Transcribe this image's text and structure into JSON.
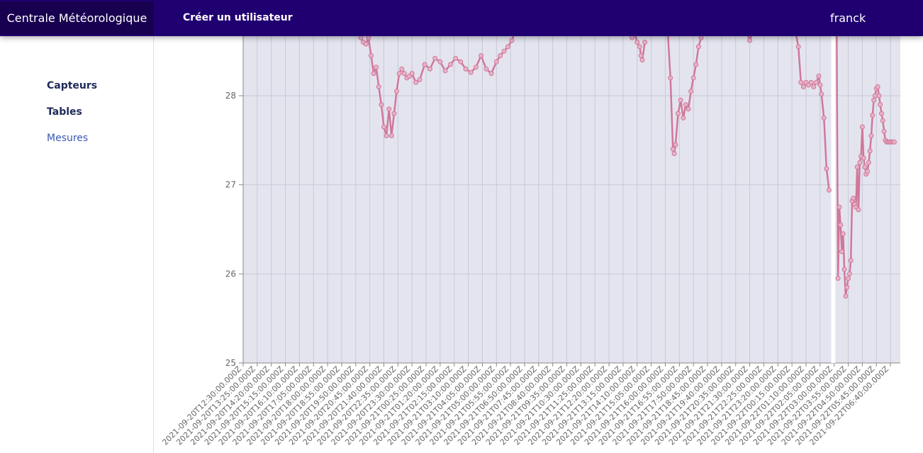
{
  "navbar": {
    "brand": "Centrale Météorologique",
    "create_user": "Créer un utilisateur",
    "username": "franck"
  },
  "sidebar": {
    "items": [
      {
        "label": "Capteurs",
        "active": false
      },
      {
        "label": "Tables",
        "active": false
      },
      {
        "label": "Mesures",
        "active": true
      }
    ]
  },
  "colors": {
    "navbar": "#200071",
    "brand_bg": "#180050",
    "plot_bg": "#e4e4ef",
    "series_line": "#d0789a",
    "active_link": "#3a58b8"
  },
  "chart_data": {
    "type": "line",
    "title": "",
    "xlabel": "",
    "ylabel": "",
    "ylim": [
      25,
      28.6
    ],
    "yticks": [
      25,
      26,
      27,
      28
    ],
    "grid": true,
    "x_tick_labels": [
      "2021-09-20T12:30:00.000Z",
      "2021-09-20T13:25:00.000Z",
      "2021-09-20T14:20:00.000Z",
      "2021-09-20T15:15:00.000Z",
      "2021-09-20T16:10:00.000Z",
      "2021-09-20T17:05:00.000Z",
      "2021-09-20T18:00:00.000Z",
      "2021-09-20T18:55:00.000Z",
      "2021-09-20T19:50:00.000Z",
      "2021-09-20T20:45:00.000Z",
      "2021-09-20T21:40:00.000Z",
      "2021-09-20T22:35:00.000Z",
      "2021-09-20T23:30:00.000Z",
      "2021-09-21T00:25:00.000Z",
      "2021-09-21T01:20:00.000Z",
      "2021-09-21T02:15:00.000Z",
      "2021-09-21T03:10:00.000Z",
      "2021-09-21T04:05:00.000Z",
      "2021-09-21T05:00:00.000Z",
      "2021-09-21T05:55:00.000Z",
      "2021-09-21T06:50:00.000Z",
      "2021-09-21T07:45:00.000Z",
      "2021-09-21T08:40:00.000Z",
      "2021-09-21T09:35:00.000Z",
      "2021-09-21T10:30:00.000Z",
      "2021-09-21T11:25:00.000Z",
      "2021-09-21T12:20:00.000Z",
      "2021-09-21T13:15:00.000Z",
      "2021-09-21T14:10:00.000Z",
      "2021-09-21T15:05:00.000Z",
      "2021-09-21T16:00:00.000Z",
      "2021-09-21T16:55:00.000Z",
      "2021-09-21T17:50:00.000Z",
      "2021-09-21T18:45:00.000Z",
      "2021-09-21T19:40:00.000Z",
      "2021-09-21T20:35:00.000Z",
      "2021-09-21T21:30:00.000Z",
      "2021-09-21T22:25:00.000Z",
      "2021-09-21T23:20:00.000Z",
      "2021-09-22T00:15:00.000Z",
      "2021-09-22T01:10:00.000Z",
      "2021-09-22T02:05:00.000Z",
      "2021-09-22T03:00:00.000Z",
      "2021-09-22T03:55:00.000Z",
      "2021-09-22T04:50:00.000Z",
      "2021-09-22T05:45:00.000Z",
      "2021-09-22T06:40:00.000Z"
    ],
    "series": [
      {
        "x": [
          "2021-09-20T20:10:00.000Z",
          "2021-09-20T20:20:00.000Z",
          "2021-09-20T20:30:00.000Z",
          "2021-09-20T20:40:00.000Z",
          "2021-09-20T20:50:00.000Z",
          "2021-09-20T21:00:00.000Z",
          "2021-09-20T21:10:00.000Z",
          "2021-09-20T21:20:00.000Z",
          "2021-09-20T21:30:00.000Z",
          "2021-09-20T21:40:00.000Z",
          "2021-09-20T21:50:00.000Z",
          "2021-09-20T22:00:00.000Z",
          "2021-09-20T22:10:00.000Z",
          "2021-09-20T22:20:00.000Z",
          "2021-09-20T22:30:00.000Z",
          "2021-09-20T22:40:00.000Z",
          "2021-09-20T22:50:00.000Z",
          "2021-09-20T23:00:00.000Z",
          "2021-09-20T23:10:00.000Z",
          "2021-09-20T23:20:00.000Z",
          "2021-09-20T23:30:00.000Z",
          "2021-09-20T23:45:00.000Z",
          "2021-09-21T00:00:00.000Z",
          "2021-09-21T00:20:00.000Z",
          "2021-09-21T00:40:00.000Z",
          "2021-09-21T01:00:00.000Z",
          "2021-09-21T01:20:00.000Z",
          "2021-09-21T01:40:00.000Z",
          "2021-09-21T02:00:00.000Z",
          "2021-09-21T02:20:00.000Z",
          "2021-09-21T02:40:00.000Z",
          "2021-09-21T03:00:00.000Z",
          "2021-09-21T03:20:00.000Z",
          "2021-09-21T03:40:00.000Z",
          "2021-09-21T04:00:00.000Z",
          "2021-09-21T04:20:00.000Z",
          "2021-09-21T04:40:00.000Z",
          "2021-09-21T05:00:00.000Z",
          "2021-09-21T05:15:00.000Z",
          "2021-09-21T05:30:00.000Z",
          "2021-09-21T05:45:00.000Z",
          "2021-09-21T06:00:00.000Z",
          "2021-09-21T06:10:00.000Z"
        ],
        "y": [
          28.65,
          28.6,
          28.58,
          28.65,
          28.45,
          28.25,
          28.32,
          28.1,
          27.9,
          27.65,
          27.55,
          27.85,
          27.55,
          27.8,
          28.05,
          28.25,
          28.3,
          28.25,
          28.2,
          28.22,
          28.25,
          28.15,
          28.18,
          28.35,
          28.3,
          28.42,
          28.38,
          28.28,
          28.35,
          28.42,
          28.38,
          28.3,
          28.26,
          28.32,
          28.45,
          28.3,
          28.25,
          28.38,
          28.45,
          28.5,
          28.55,
          28.62,
          28.7
        ]
      },
      {
        "x": [
          "2021-09-21T13:50:00.000Z",
          "2021-09-21T14:00:00.000Z",
          "2021-09-21T14:10:00.000Z",
          "2021-09-21T14:20:00.000Z",
          "2021-09-21T14:25:00.000Z",
          "2021-09-21T14:30:00.000Z",
          "2021-09-21T14:40:00.000Z"
        ],
        "y": [
          28.65,
          28.7,
          28.6,
          28.55,
          28.45,
          28.4,
          28.6
        ]
      },
      {
        "x": [
          "2021-09-21T16:10:00.000Z",
          "2021-09-21T16:20:00.000Z",
          "2021-09-21T16:30:00.000Z",
          "2021-09-21T16:35:00.000Z",
          "2021-09-21T16:40:00.000Z",
          "2021-09-21T16:50:00.000Z",
          "2021-09-21T17:00:00.000Z",
          "2021-09-21T17:10:00.000Z",
          "2021-09-21T17:20:00.000Z",
          "2021-09-21T17:30:00.000Z",
          "2021-09-21T17:40:00.000Z",
          "2021-09-21T17:50:00.000Z",
          "2021-09-21T18:00:00.000Z",
          "2021-09-21T18:10:00.000Z",
          "2021-09-21T18:20:00.000Z"
        ],
        "y": [
          28.7,
          28.2,
          27.4,
          27.35,
          27.45,
          27.8,
          27.95,
          27.75,
          27.9,
          27.85,
          28.05,
          28.2,
          28.35,
          28.55,
          28.65
        ]
      },
      {
        "x": [
          "2021-09-21T21:20:00.000Z",
          "2021-09-21T21:30:00.000Z",
          "2021-09-21T21:40:00.000Z"
        ],
        "y": [
          28.7,
          28.62,
          28.7
        ]
      },
      {
        "x": [
          "2021-09-22T00:30:00.000Z",
          "2021-09-22T00:40:00.000Z",
          "2021-09-22T00:50:00.000Z",
          "2021-09-22T01:00:00.000Z",
          "2021-09-22T01:10:00.000Z",
          "2021-09-22T01:20:00.000Z",
          "2021-09-22T01:30:00.000Z",
          "2021-09-22T01:40:00.000Z",
          "2021-09-22T01:50:00.000Z",
          "2021-09-22T02:00:00.000Z",
          "2021-09-22T02:05:00.000Z",
          "2021-09-22T02:10:00.000Z",
          "2021-09-22T02:20:00.000Z",
          "2021-09-22T02:30:00.000Z",
          "2021-09-22T02:40:00.000Z"
        ],
        "y": [
          28.7,
          28.55,
          28.15,
          28.1,
          28.15,
          28.12,
          28.15,
          28.1,
          28.15,
          28.22,
          28.12,
          28.02,
          27.75,
          27.18,
          26.94
        ]
      },
      {
        "x": [
          "2021-09-22T03:10:00.000Z",
          "2021-09-22T03:15:00.000Z",
          "2021-09-22T03:20:00.000Z",
          "2021-09-22T03:25:00.000Z",
          "2021-09-22T03:30:00.000Z",
          "2021-09-22T03:35:00.000Z",
          "2021-09-22T03:40:00.000Z",
          "2021-09-22T03:45:00.000Z",
          "2021-09-22T03:50:00.000Z",
          "2021-09-22T03:55:00.000Z",
          "2021-09-22T04:00:00.000Z",
          "2021-09-22T04:05:00.000Z",
          "2021-09-22T04:10:00.000Z",
          "2021-09-22T04:15:00.000Z",
          "2021-09-22T04:20:00.000Z",
          "2021-09-22T04:25:00.000Z",
          "2021-09-22T04:30:00.000Z",
          "2021-09-22T04:35:00.000Z",
          "2021-09-22T04:40:00.000Z",
          "2021-09-22T04:45:00.000Z",
          "2021-09-22T04:50:00.000Z",
          "2021-09-22T04:55:00.000Z",
          "2021-09-22T05:00:00.000Z",
          "2021-09-22T05:05:00.000Z",
          "2021-09-22T05:10:00.000Z",
          "2021-09-22T05:15:00.000Z",
          "2021-09-22T05:20:00.000Z",
          "2021-09-22T05:25:00.000Z",
          "2021-09-22T05:30:00.000Z",
          "2021-09-22T05:35:00.000Z",
          "2021-09-22T05:40:00.000Z",
          "2021-09-22T05:45:00.000Z",
          "2021-09-22T05:50:00.000Z",
          "2021-09-22T05:55:00.000Z",
          "2021-09-22T06:00:00.000Z",
          "2021-09-22T06:05:00.000Z",
          "2021-09-22T06:10:00.000Z",
          "2021-09-22T06:15:00.000Z",
          "2021-09-22T06:20:00.000Z",
          "2021-09-22T06:25:00.000Z",
          "2021-09-22T06:30:00.000Z",
          "2021-09-22T06:35:00.000Z",
          "2021-09-22T06:40:00.000Z",
          "2021-09-22T06:45:00.000Z",
          "2021-09-22T06:50:00.000Z",
          "2021-09-22T06:55:00.000Z"
        ],
        "y": [
          28.7,
          25.95,
          26.75,
          26.55,
          26.25,
          26.45,
          26.05,
          25.75,
          25.85,
          25.95,
          26.0,
          26.15,
          26.82,
          26.85,
          26.78,
          26.75,
          27.2,
          26.72,
          27.25,
          27.32,
          27.65,
          27.3,
          27.2,
          27.12,
          27.15,
          27.25,
          27.38,
          27.55,
          27.78,
          27.95,
          28.0,
          28.08,
          28.1,
          28.0,
          27.9,
          27.8,
          27.72,
          27.6,
          27.5,
          27.48,
          27.48,
          27.48,
          27.48,
          27.48,
          27.48,
          27.48
        ]
      }
    ]
  }
}
